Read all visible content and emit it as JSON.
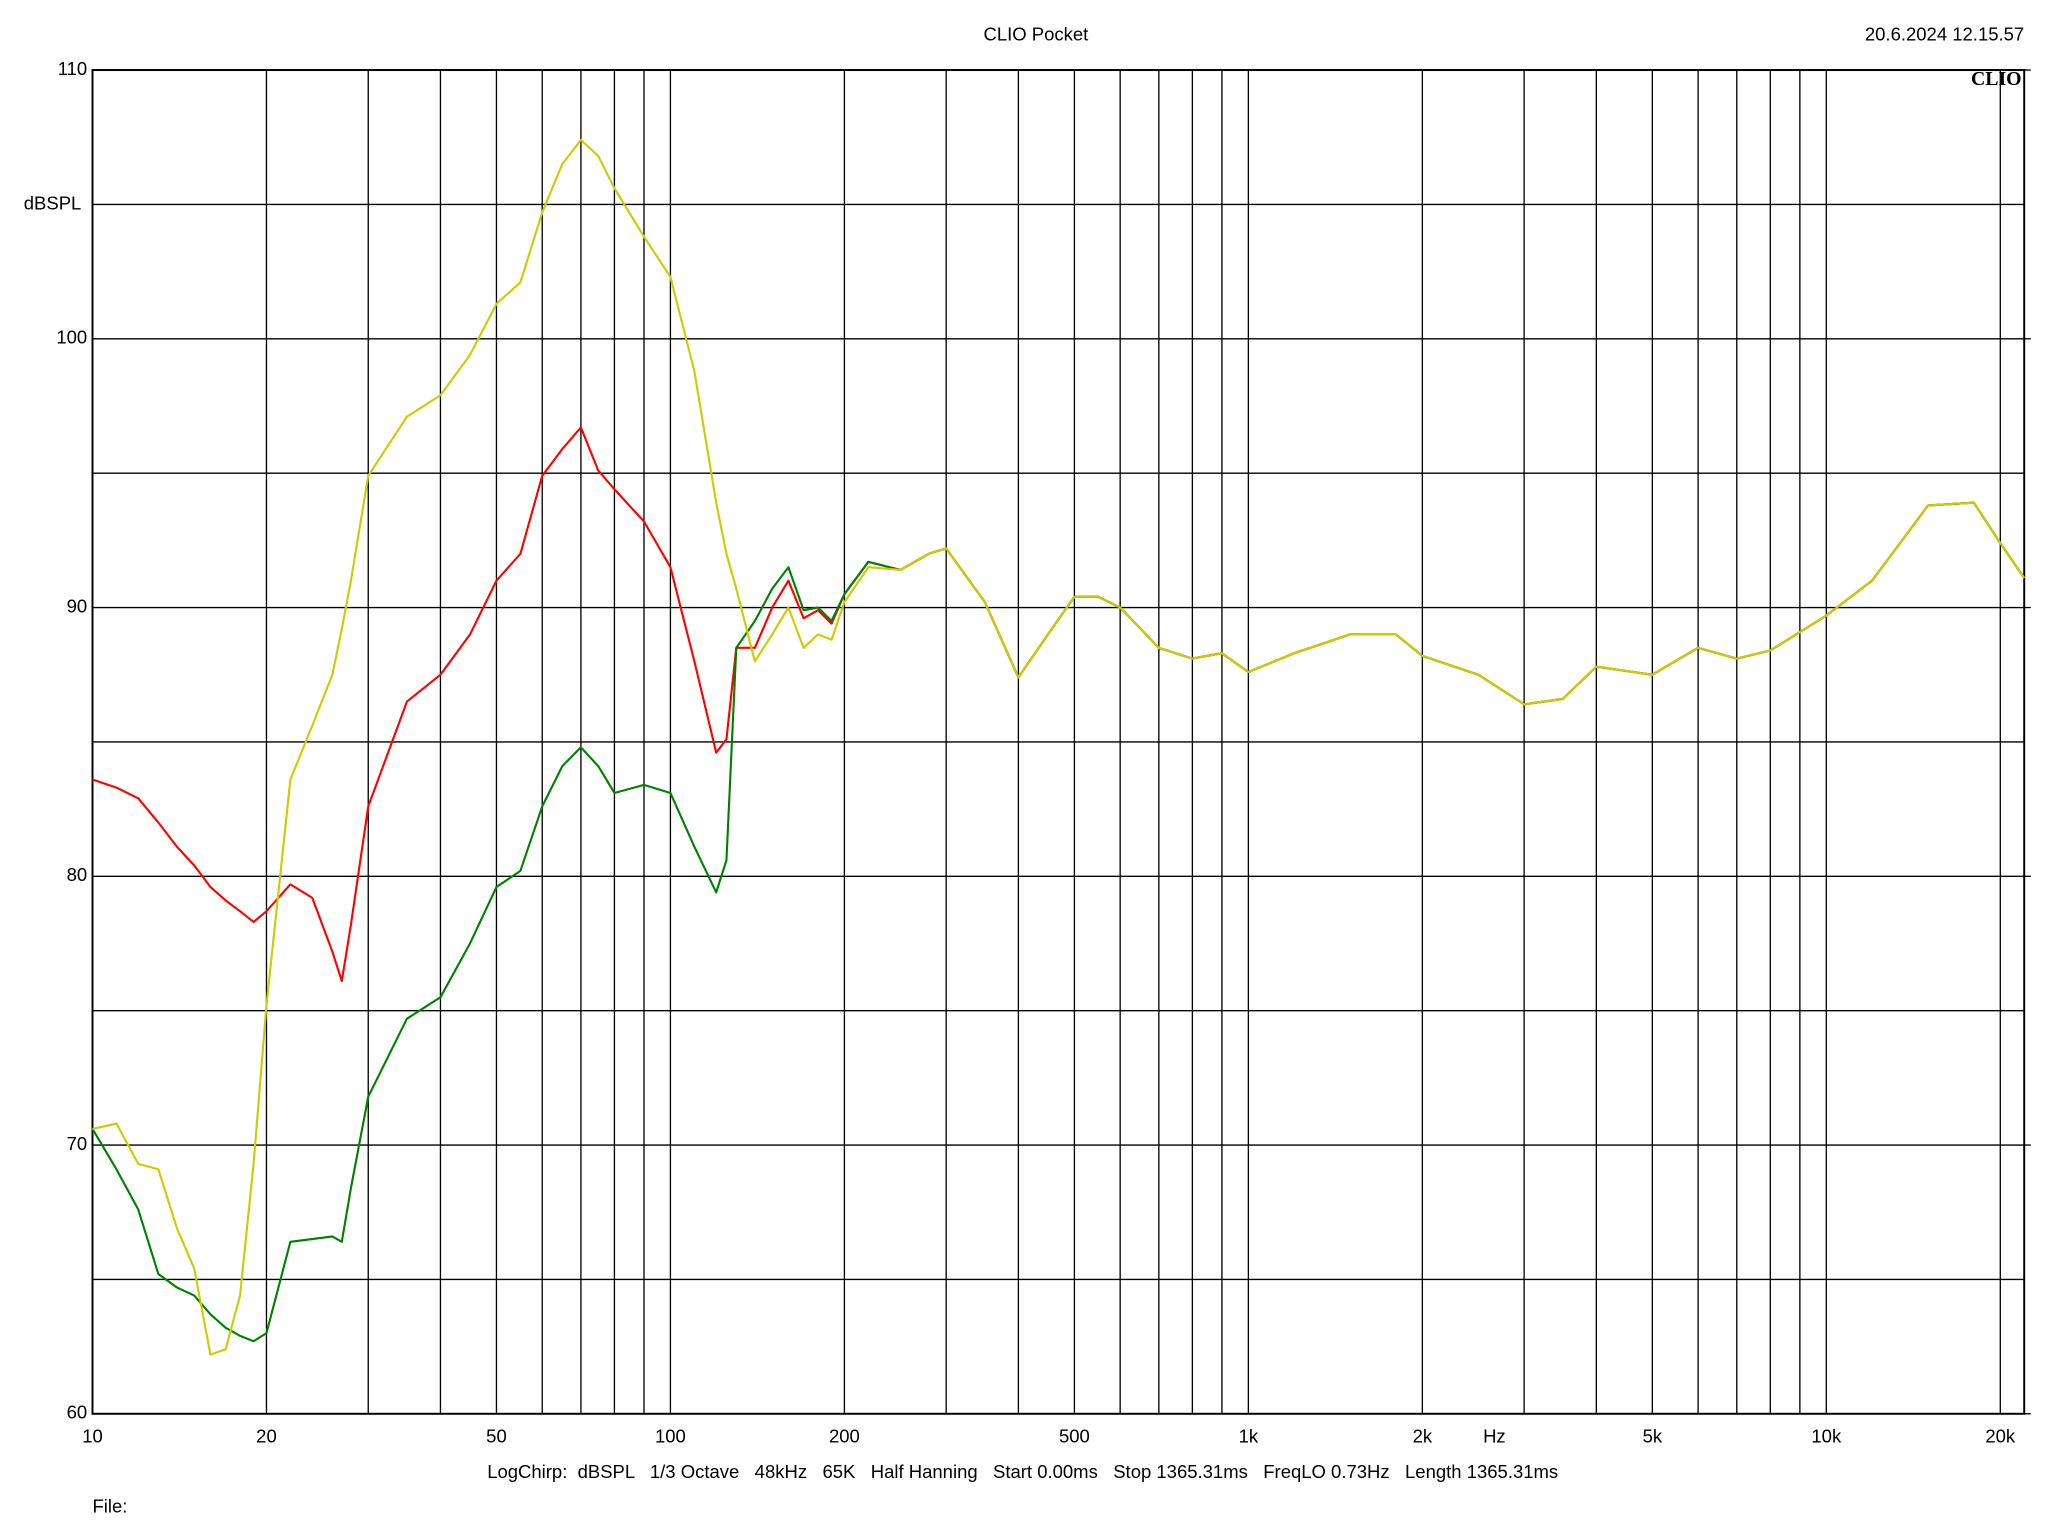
{
  "chart_data": {
    "type": "line",
    "title": "CLIO Pocket",
    "timestamp": "20.6.2024 12.15.57",
    "logo": "CLIO",
    "y_label": "dBSPL",
    "x_label": "Hz",
    "footer": "LogChirp:  dBSPL   1/3 Octave   48kHz   65K   Half Hanning   Start 0.00ms   Stop 1365.31ms   FreqLO 0.73Hz   Length 1365.31ms",
    "file_label": "File:",
    "xscale": "log",
    "grid": true,
    "xlim": [
      10,
      22000
    ],
    "ylim": [
      60,
      110
    ],
    "xticks": [
      10,
      20,
      50,
      100,
      200,
      500,
      {
        "value": 1000,
        "label": "1k"
      },
      {
        "value": 2000,
        "label": "2k"
      },
      {
        "value": 5000,
        "label": "5k"
      },
      {
        "value": 10000,
        "label": "10k"
      },
      {
        "value": 20000,
        "label": "20k"
      }
    ],
    "xminor": [
      30,
      40,
      60,
      70,
      80,
      90,
      300,
      400,
      600,
      700,
      800,
      900,
      3000,
      4000,
      6000,
      7000,
      8000,
      9000
    ],
    "yticks": [
      60,
      70,
      80,
      90,
      100,
      110
    ],
    "yminor": [
      65,
      75,
      85,
      95,
      105
    ],
    "x": [
      10,
      11,
      12,
      13,
      14,
      15,
      16,
      17,
      18,
      19,
      20,
      22,
      24,
      26,
      27,
      28,
      30,
      35,
      40,
      45,
      50,
      55,
      60,
      65,
      70,
      75,
      80,
      90,
      100,
      110,
      120,
      125,
      130,
      140,
      150,
      160,
      170,
      180,
      190,
      200,
      220,
      250,
      280,
      300,
      350,
      400,
      450,
      500,
      550,
      600,
      700,
      800,
      900,
      1000,
      1200,
      1500,
      1800,
      2000,
      2500,
      3000,
      3500,
      4000,
      5000,
      6000,
      7000,
      8000,
      10000,
      12000,
      15000,
      18000,
      20000,
      22000
    ],
    "series": [
      {
        "name": "red",
        "color": "#ff0000",
        "values": [
          83.6,
          83.3,
          82.9,
          82.0,
          81.1,
          80.4,
          79.6,
          79.1,
          78.7,
          78.3,
          78.7,
          79.7,
          79.2,
          77.2,
          76.1,
          78.2,
          82.6,
          86.5,
          87.5,
          89.0,
          91.0,
          92.0,
          94.9,
          95.9,
          96.7,
          95.1,
          94.4,
          93.2,
          91.5,
          88.0,
          84.6,
          85.1,
          88.5,
          88.5,
          90.0,
          91.0,
          89.6,
          89.9,
          89.4,
          90.5,
          91.7,
          91.4,
          92.0,
          92.2,
          90.2,
          87.4,
          89.0,
          90.4,
          90.4,
          90.0,
          88.5,
          88.1,
          88.3,
          87.6,
          88.3,
          89.0,
          89.0,
          88.2,
          87.5,
          86.4,
          86.6,
          87.8,
          87.5,
          88.5,
          88.1,
          88.4,
          89.7,
          91.0,
          93.8,
          93.9,
          92.4,
          91.1
        ]
      },
      {
        "name": "green",
        "color": "#008000",
        "values": [
          70.6,
          69.1,
          67.6,
          65.2,
          64.7,
          64.4,
          63.7,
          63.2,
          62.9,
          62.7,
          63.0,
          66.4,
          66.5,
          66.6,
          66.4,
          68.4,
          71.8,
          74.7,
          75.5,
          77.5,
          79.6,
          80.2,
          82.6,
          84.1,
          84.8,
          84.1,
          83.1,
          83.4,
          83.1,
          81.1,
          79.4,
          80.6,
          88.5,
          89.5,
          90.7,
          91.5,
          89.9,
          90.0,
          89.5,
          90.5,
          91.7,
          91.4,
          92.0,
          92.2,
          90.2,
          87.4,
          89.0,
          90.4,
          90.4,
          90.0,
          88.5,
          88.1,
          88.3,
          87.6,
          88.3,
          89.0,
          89.0,
          88.2,
          87.5,
          86.4,
          86.6,
          87.8,
          87.5,
          88.5,
          88.1,
          88.4,
          89.7,
          91.0,
          93.8,
          93.9,
          92.4,
          91.1
        ]
      },
      {
        "name": "yellow",
        "color": "#cccc00",
        "values": [
          70.6,
          70.8,
          69.3,
          69.1,
          66.9,
          65.4,
          62.2,
          62.4,
          64.4,
          69.3,
          75.2,
          83.6,
          85.6,
          87.5,
          89.2,
          91.0,
          94.9,
          97.1,
          97.9,
          99.4,
          101.3,
          102.1,
          104.7,
          106.5,
          107.4,
          106.8,
          105.6,
          103.8,
          102.3,
          98.8,
          93.9,
          92.0,
          90.7,
          88.0,
          89.0,
          90.0,
          88.5,
          89.0,
          88.8,
          90.2,
          91.5,
          91.4,
          92.0,
          92.2,
          90.2,
          87.4,
          89.0,
          90.4,
          90.4,
          90.0,
          88.5,
          88.1,
          88.3,
          87.6,
          88.3,
          89.0,
          89.0,
          88.2,
          87.5,
          86.4,
          86.6,
          87.8,
          87.5,
          88.5,
          88.1,
          88.4,
          89.7,
          91.0,
          93.8,
          93.9,
          92.4,
          91.1
        ]
      }
    ]
  }
}
